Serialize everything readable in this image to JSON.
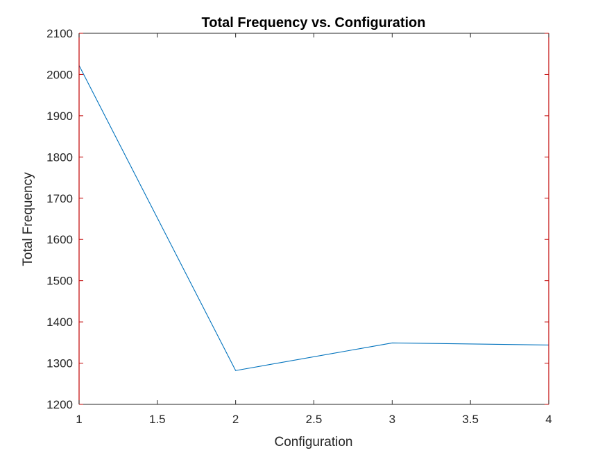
{
  "chart_data": {
    "type": "line",
    "title": "Total Frequency vs. Configuration",
    "xlabel": "Configuration",
    "ylabel": "Total Frequency",
    "xlim": [
      1,
      4
    ],
    "ylim": [
      1200,
      2100
    ],
    "xticks": [
      1,
      1.5,
      2,
      2.5,
      3,
      3.5,
      4
    ],
    "xtick_labels": [
      "1",
      "1.5",
      "2",
      "2.5",
      "3",
      "3.5",
      "4"
    ],
    "yticks": [
      1200,
      1300,
      1400,
      1500,
      1600,
      1700,
      1800,
      1900,
      2000,
      2100
    ],
    "ytick_labels": [
      "1200",
      "1300",
      "1400",
      "1500",
      "1600",
      "1700",
      "1800",
      "1900",
      "2000",
      "2100"
    ],
    "grid": false,
    "series": [
      {
        "x": [
          1,
          2,
          3,
          4
        ],
        "values": [
          2022,
          1282,
          1349,
          1344
        ]
      }
    ],
    "colors": {
      "line": "#0072BD",
      "axes": "#262626",
      "box_sides": "#c00000"
    }
  }
}
